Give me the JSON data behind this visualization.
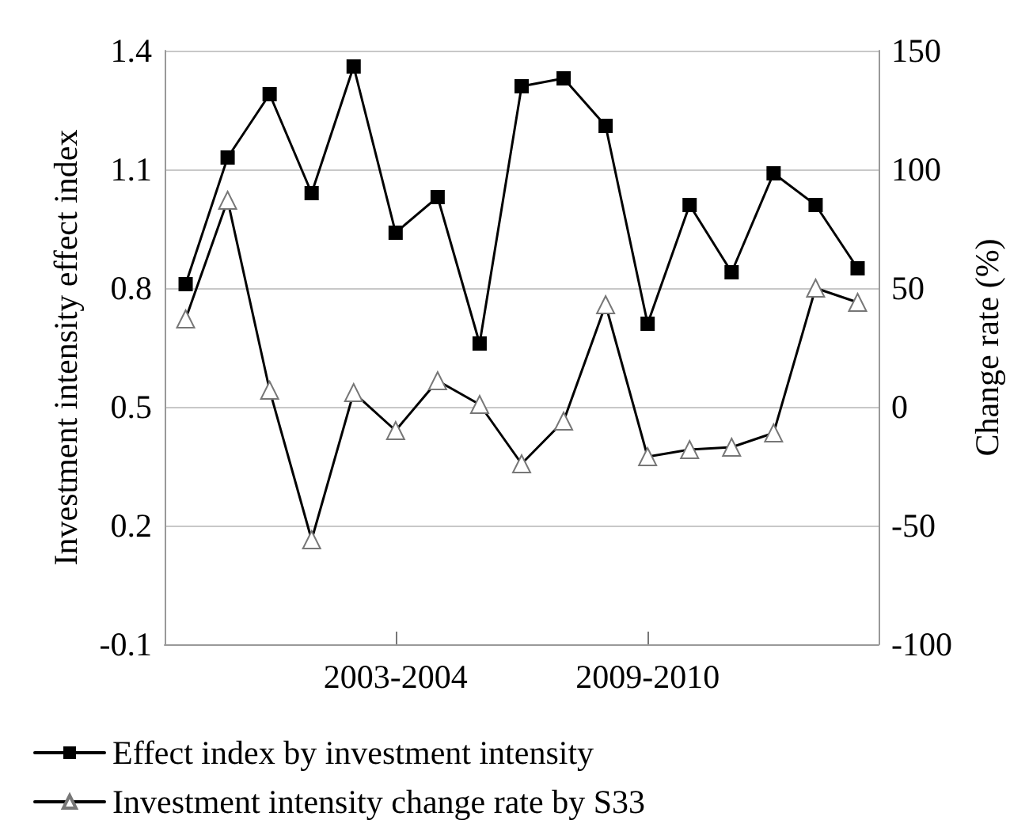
{
  "chart_data": {
    "type": "line",
    "ylabel": "Investment intensity effect index",
    "y2label": "Change rate (%)",
    "categories": [
      null,
      null,
      null,
      null,
      null,
      "2003-2004",
      null,
      null,
      null,
      null,
      null,
      "2009-2010",
      null,
      null,
      null,
      null,
      null
    ],
    "series": [
      {
        "name": "Effect index by investment intensity",
        "color": "#000000",
        "marker": "square",
        "values": [
          0.81,
          1.13,
          1.29,
          1.04,
          1.36,
          0.94,
          1.03,
          0.66,
          1.31,
          1.33,
          1.21,
          0.71,
          1.01,
          0.84,
          1.09,
          1.01,
          0.85
        ]
      },
      {
        "name": "Investment intensity change rate by S33",
        "color": "#000000",
        "marker": "triangle",
        "axis": "y2",
        "values": [
          37,
          87,
          7,
          -56,
          6,
          -10,
          11,
          1,
          -24,
          -6,
          43,
          -21,
          -18,
          -17,
          -11,
          50,
          44
        ]
      }
    ],
    "ylim": [
      -0.1,
      1.4
    ],
    "yticks": [
      -0.1,
      0.2,
      0.5,
      0.8,
      1.1,
      1.4
    ],
    "y2lim": [
      -100,
      150
    ],
    "y2ticks": [
      -100,
      -50,
      0,
      50,
      100,
      150
    ],
    "grid": "y",
    "legend": "bottom",
    "line_style": "solid"
  }
}
